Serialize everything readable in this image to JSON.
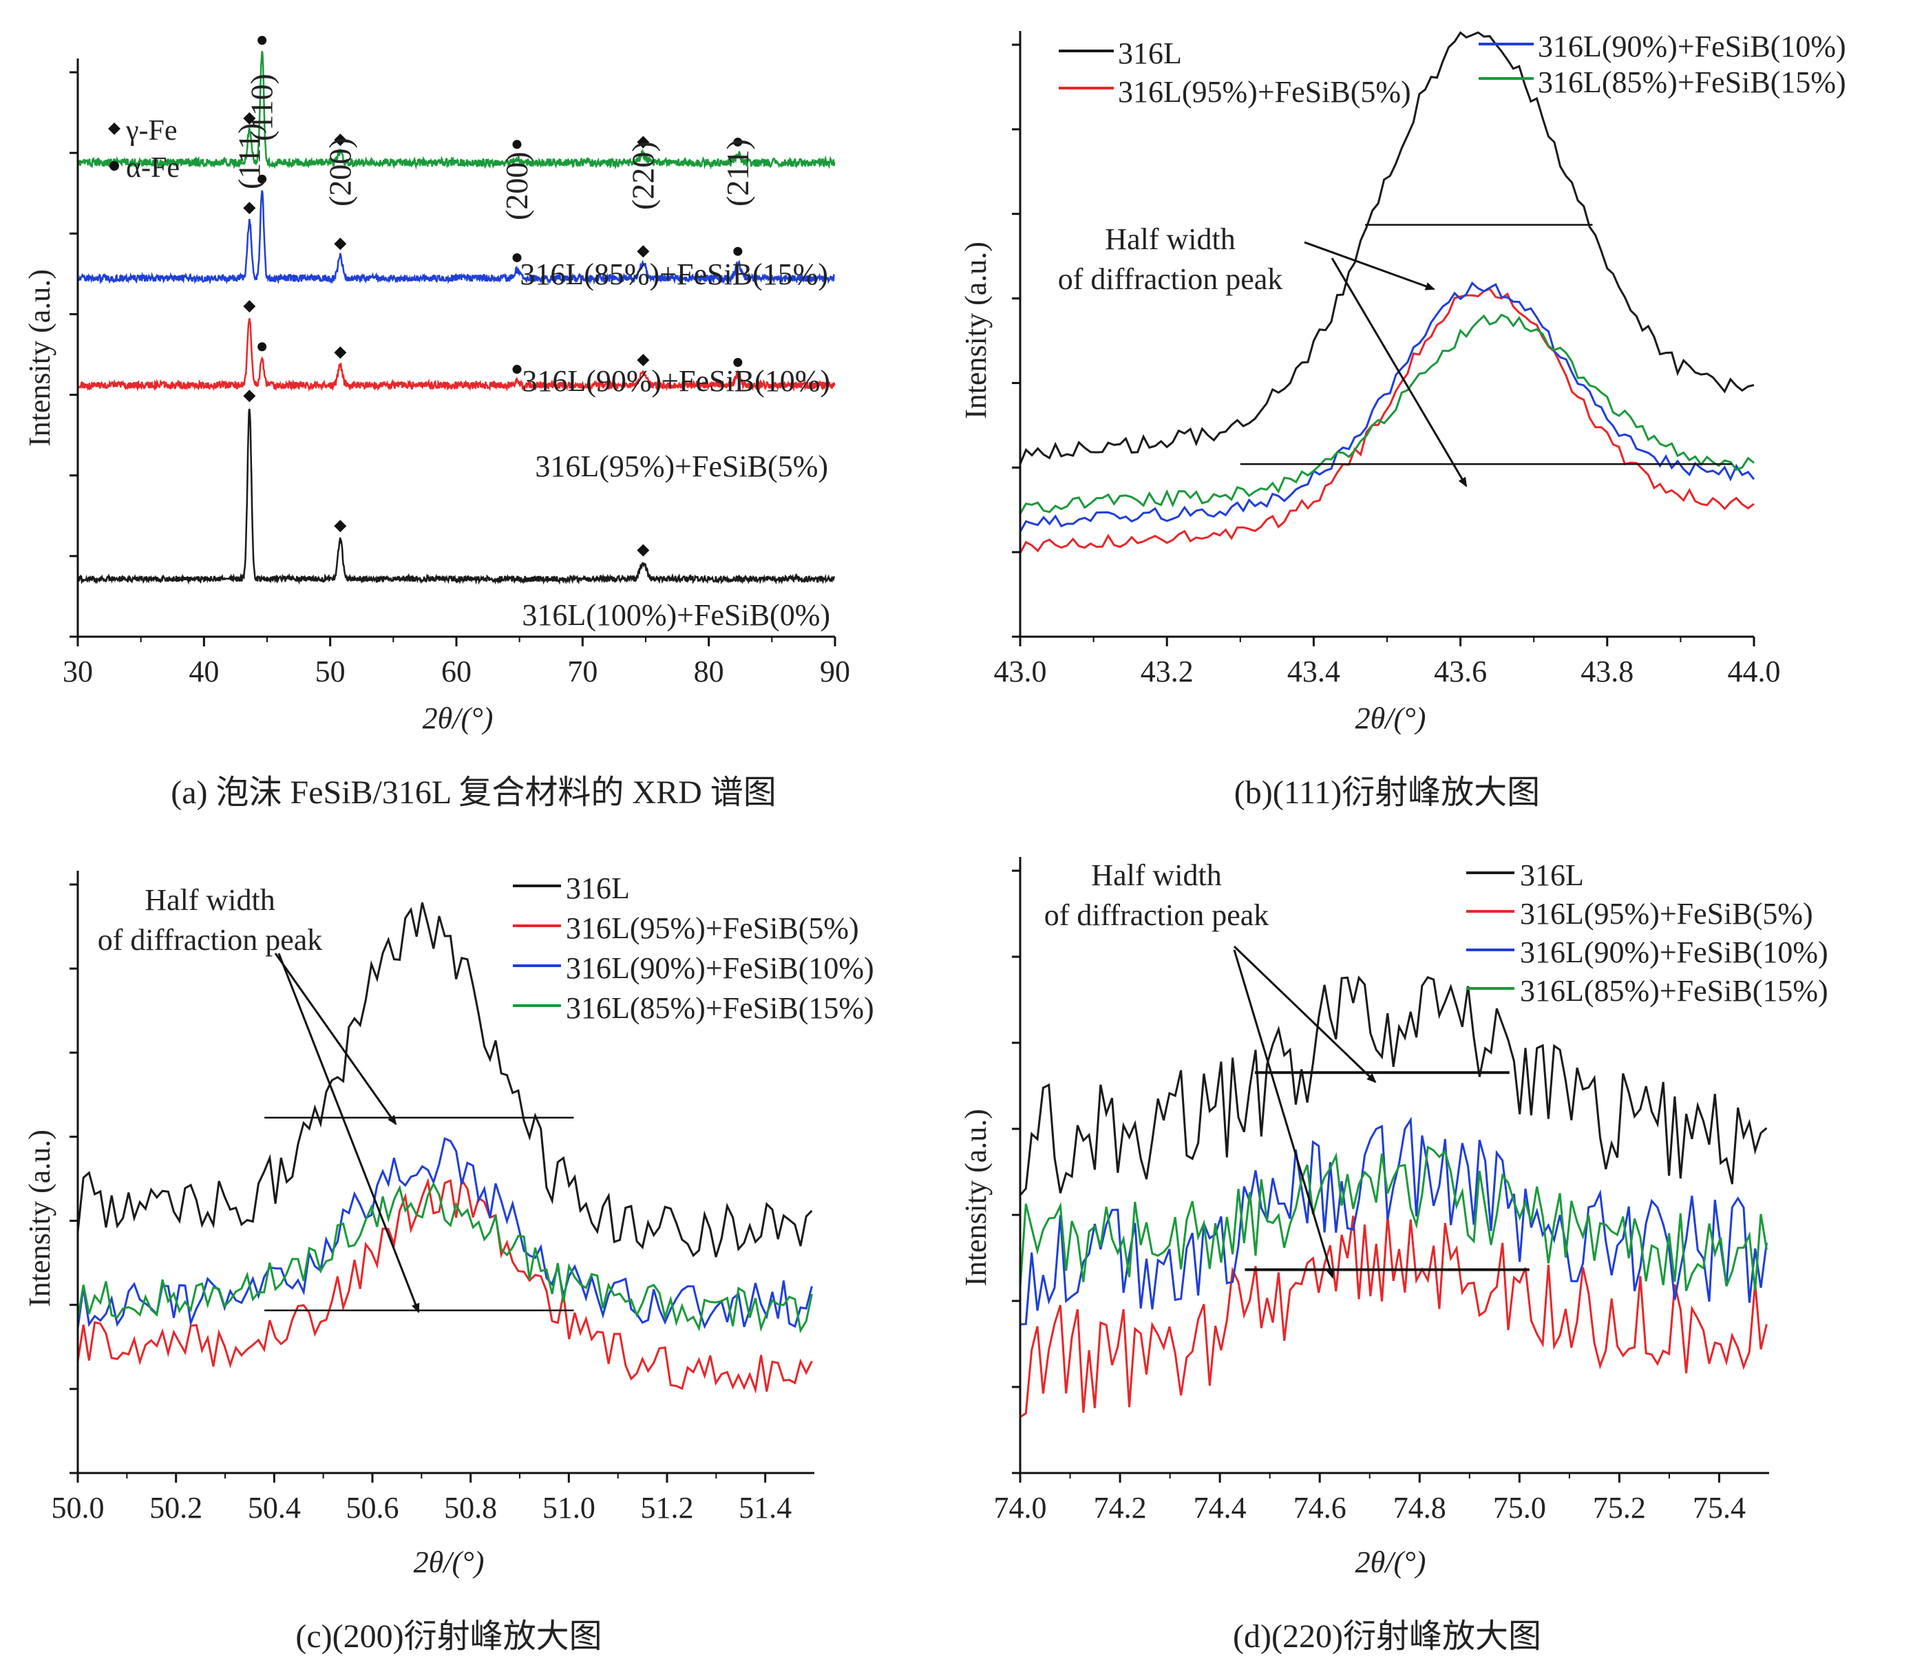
{
  "colors": {
    "black": "#1a1a1a",
    "red": "#e8272a",
    "blue": "#1f3fd8",
    "green": "#1a9a3a"
  },
  "chart_data": [
    {
      "id": "a",
      "type": "line",
      "caption": "(a) 泡沫 FeSiB/316L 复合材料的 XRD 谱图",
      "xlabel": "2θ/(°)",
      "ylabel": "Intensity (a.u.)",
      "xlim": [
        30,
        90
      ],
      "ylim": [
        0,
        10
      ],
      "x_ticks": [
        30,
        40,
        50,
        60,
        70,
        80,
        90
      ],
      "legend": [
        {
          "marker": "diamond",
          "label": "γ-Fe"
        },
        {
          "marker": "dot",
          "label": "α-Fe"
        }
      ],
      "peak_labels": [
        {
          "label": "(111)",
          "x": 43.6
        },
        {
          "label": "(110)",
          "x": 44.6
        },
        {
          "label": "(200)",
          "x": 50.8
        },
        {
          "label": "(200)",
          "x": 64.8
        },
        {
          "label": "(220)",
          "x": 74.8
        },
        {
          "label": "(211)",
          "x": 82.3
        }
      ],
      "series": [
        {
          "name": "316L(85%)+FeSiB(15%)",
          "color": "green",
          "baseline": 8.2,
          "noise": 0.07,
          "peaks": [
            [
              43.6,
              0.55,
              0.22
            ],
            [
              44.6,
              1.9,
              0.2
            ],
            [
              50.8,
              0.18,
              0.25
            ],
            [
              64.8,
              0.1,
              0.3
            ],
            [
              74.8,
              0.14,
              0.35
            ],
            [
              82.3,
              0.14,
              0.3
            ]
          ],
          "markers": [
            [
              "diamond",
              43.6
            ],
            [
              "dot",
              44.6
            ],
            [
              "diamond",
              50.8
            ],
            [
              "dot",
              64.8
            ],
            [
              "diamond",
              74.8
            ],
            [
              "dot",
              82.3
            ]
          ]
        },
        {
          "name": "316L(90%)+FeSiB(10%)",
          "color": "blue",
          "baseline": 6.2,
          "noise": 0.06,
          "peaks": [
            [
              43.6,
              1.0,
              0.22
            ],
            [
              44.6,
              1.5,
              0.2
            ],
            [
              50.8,
              0.38,
              0.25
            ],
            [
              64.8,
              0.14,
              0.3
            ],
            [
              74.8,
              0.25,
              0.35
            ],
            [
              82.3,
              0.25,
              0.3
            ]
          ],
          "markers": [
            [
              "diamond",
              43.6
            ],
            [
              "dot",
              44.6
            ],
            [
              "diamond",
              50.8
            ],
            [
              "dot",
              64.8
            ],
            [
              "diamond",
              74.8
            ],
            [
              "dot",
              82.3
            ]
          ]
        },
        {
          "name": "316L(95%)+FeSiB(5%)",
          "color": "red",
          "baseline": 4.35,
          "noise": 0.06,
          "peaks": [
            [
              43.6,
              1.15,
              0.22
            ],
            [
              44.6,
              0.45,
              0.2
            ],
            [
              50.8,
              0.35,
              0.25
            ],
            [
              64.8,
              0.06,
              0.3
            ],
            [
              74.8,
              0.22,
              0.35
            ],
            [
              82.3,
              0.18,
              0.3
            ]
          ],
          "markers": [
            [
              "diamond",
              43.6
            ],
            [
              "dot",
              44.6
            ],
            [
              "diamond",
              50.8
            ],
            [
              "dot",
              64.8
            ],
            [
              "diamond",
              74.8
            ],
            [
              "dot",
              82.3
            ]
          ]
        },
        {
          "name": "316L(100%)+FeSiB(0%)",
          "color": "black",
          "baseline": 1.0,
          "noise": 0.05,
          "peaks": [
            [
              43.6,
              2.95,
              0.22
            ],
            [
              50.8,
              0.7,
              0.25
            ],
            [
              74.8,
              0.28,
              0.35
            ]
          ],
          "markers": [
            [
              "diamond",
              43.6
            ],
            [
              "diamond",
              50.8
            ],
            [
              "diamond",
              74.8
            ]
          ]
        }
      ]
    },
    {
      "id": "b",
      "type": "line",
      "caption": "(b)(111)衍射峰放大图",
      "xlabel": "2θ/(°)",
      "ylabel": "Intensity (a.u.)",
      "xlim": [
        43.0,
        44.0
      ],
      "ylim": [
        0,
        10
      ],
      "x_ticks": [
        "43.0",
        "43.2",
        "43.4",
        "43.6",
        "43.8",
        "44.0"
      ],
      "annotation": "Half width of diffraction peak",
      "half_width_lines": [
        {
          "x1": 43.47,
          "x2": 43.78,
          "y": 6.8
        },
        {
          "x1": 43.3,
          "x2": 43.97,
          "y": 2.85
        }
      ],
      "series": [
        {
          "name": "316L",
          "color": "black",
          "base": 3.0,
          "peak": 9.3,
          "center": 43.62,
          "width": 0.18,
          "noise": 0.15,
          "endval": 4.0
        },
        {
          "name": "316L(95%)+FeSiB(5%)",
          "color": "red",
          "base": 1.5,
          "peak": 5.3,
          "center": 43.63,
          "width": 0.16,
          "noise": 0.12,
          "endval": 2.2
        },
        {
          "name": "316L(90%)+FeSiB(10%)",
          "color": "blue",
          "base": 1.85,
          "peak": 5.25,
          "center": 43.63,
          "width": 0.16,
          "noise": 0.12,
          "endval": 2.7
        },
        {
          "name": "316L(85%)+FeSiB(15%)",
          "color": "green",
          "base": 2.15,
          "peak": 4.8,
          "center": 43.65,
          "width": 0.17,
          "noise": 0.12,
          "endval": 2.8
        }
      ]
    },
    {
      "id": "c",
      "type": "line",
      "caption": "(c)(200)衍射峰放大图",
      "xlabel": "2θ/(°)",
      "ylabel": "Intensity (a.u.)",
      "xlim": [
        50.0,
        51.5
      ],
      "ylim": [
        0,
        10
      ],
      "x_ticks": [
        "50.0",
        "50.2",
        "50.4",
        "50.6",
        "50.8",
        "51.0",
        "51.2",
        "51.4"
      ],
      "annotation": "Half width of diffraction peak",
      "half_width_lines": [
        {
          "x1": 50.38,
          "x2": 51.01,
          "y": 5.9
        },
        {
          "x1": 50.38,
          "x2": 51.01,
          "y": 2.7
        }
      ],
      "series": [
        {
          "name": "316L",
          "color": "black",
          "base": 4.5,
          "peak": 9.3,
          "center": 50.7,
          "width": 0.2,
          "noise": 0.5,
          "endval": 4.0
        },
        {
          "name": "316L(95%)+FeSiB(5%)",
          "color": "red",
          "base": 2.2,
          "peak": 4.9,
          "center": 50.75,
          "width": 0.22,
          "noise": 0.35,
          "endval": 1.6
        },
        {
          "name": "316L(90%)+FeSiB(10%)",
          "color": "blue",
          "base": 2.8,
          "peak": 5.2,
          "center": 50.72,
          "width": 0.22,
          "noise": 0.4,
          "endval": 2.8
        },
        {
          "name": "316L(85%)+FeSiB(15%)",
          "color": "green",
          "base": 2.9,
          "peak": 4.6,
          "center": 50.7,
          "width": 0.24,
          "noise": 0.35,
          "endval": 2.7
        }
      ]
    },
    {
      "id": "d",
      "type": "line",
      "caption": "(d)(220)衍射峰放大图",
      "xlabel": "2θ/(°)",
      "ylabel": "Intensity (a.u.)",
      "xlim": [
        74.0,
        75.5
      ],
      "ylim": [
        0,
        10
      ],
      "x_ticks": [
        "74.0",
        "74.2",
        "74.4",
        "74.6",
        "74.8",
        "75.0",
        "75.2",
        "75.4"
      ],
      "annotation": "Half width of diffraction peak",
      "half_width_lines": [
        {
          "x1": 74.47,
          "x2": 74.98,
          "y": 6.5
        },
        {
          "x1": 74.45,
          "x2": 75.02,
          "y": 3.3
        }
      ],
      "series": [
        {
          "name": "316L",
          "color": "black",
          "base": 5.4,
          "peak": 7.4,
          "center": 74.75,
          "width": 0.3,
          "noise": 0.9,
          "endval": 5.5
        },
        {
          "name": "316L(95%)+FeSiB(5%)",
          "color": "red",
          "base": 1.8,
          "peak": 3.4,
          "center": 74.75,
          "width": 0.3,
          "noise": 0.9,
          "endval": 2.3
        },
        {
          "name": "316L(90%)+FeSiB(10%)",
          "color": "blue",
          "base": 3.3,
          "peak": 4.7,
          "center": 74.75,
          "width": 0.32,
          "noise": 0.9,
          "endval": 3.6
        },
        {
          "name": "316L(85%)+FeSiB(15%)",
          "color": "green",
          "base": 3.7,
          "peak": 4.8,
          "center": 74.75,
          "width": 0.32,
          "noise": 0.7,
          "endval": 3.5
        }
      ]
    }
  ]
}
